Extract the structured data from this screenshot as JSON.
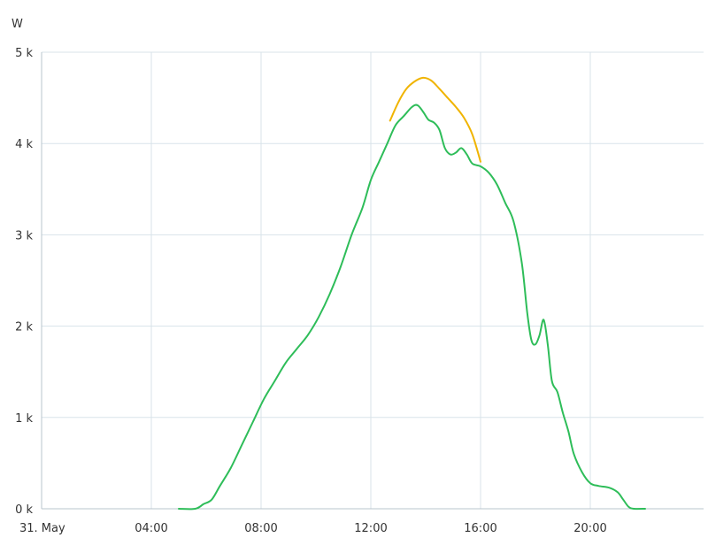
{
  "chart_data": {
    "type": "line",
    "title": "",
    "ylabel": "W",
    "xlabel": "",
    "x_unit": "hours",
    "x_range": [
      0,
      24
    ],
    "ylim": [
      0,
      5000
    ],
    "x_ticks": [
      {
        "value": 0,
        "label": "31. May"
      },
      {
        "value": 4,
        "label": "04:00"
      },
      {
        "value": 8,
        "label": "08:00"
      },
      {
        "value": 12,
        "label": "12:00"
      },
      {
        "value": 16,
        "label": "16:00"
      },
      {
        "value": 20,
        "label": "20:00"
      }
    ],
    "y_ticks": [
      {
        "value": 0,
        "label": "0 k"
      },
      {
        "value": 1000,
        "label": "1 k"
      },
      {
        "value": 2000,
        "label": "2 k"
      },
      {
        "value": 3000,
        "label": "3 k"
      },
      {
        "value": 4000,
        "label": "4 k"
      },
      {
        "value": 5000,
        "label": "5 k"
      }
    ],
    "vertical_grid": true,
    "horizontal_grid": true,
    "legend": "none",
    "series": [
      {
        "color": "#f0b400",
        "points": [
          [
            12.7,
            4250
          ],
          [
            13.0,
            4450
          ],
          [
            13.3,
            4600
          ],
          [
            13.6,
            4680
          ],
          [
            13.9,
            4720
          ],
          [
            14.2,
            4690
          ],
          [
            14.5,
            4600
          ],
          [
            14.8,
            4500
          ],
          [
            15.1,
            4400
          ],
          [
            15.4,
            4280
          ],
          [
            15.7,
            4100
          ],
          [
            16.0,
            3800
          ]
        ]
      },
      {
        "color": "#2ebd59",
        "points": [
          [
            5.0,
            0
          ],
          [
            5.6,
            0
          ],
          [
            5.9,
            50
          ],
          [
            6.2,
            100
          ],
          [
            6.5,
            250
          ],
          [
            6.9,
            450
          ],
          [
            7.3,
            700
          ],
          [
            7.7,
            950
          ],
          [
            8.1,
            1200
          ],
          [
            8.5,
            1400
          ],
          [
            8.9,
            1600
          ],
          [
            9.3,
            1750
          ],
          [
            9.7,
            1900
          ],
          [
            10.1,
            2100
          ],
          [
            10.5,
            2350
          ],
          [
            10.9,
            2650
          ],
          [
            11.3,
            3000
          ],
          [
            11.7,
            3300
          ],
          [
            12.0,
            3600
          ],
          [
            12.3,
            3800
          ],
          [
            12.6,
            4000
          ],
          [
            12.9,
            4200
          ],
          [
            13.2,
            4300
          ],
          [
            13.5,
            4400
          ],
          [
            13.7,
            4420
          ],
          [
            13.9,
            4350
          ],
          [
            14.1,
            4260
          ],
          [
            14.3,
            4230
          ],
          [
            14.5,
            4150
          ],
          [
            14.7,
            3950
          ],
          [
            14.9,
            3880
          ],
          [
            15.1,
            3900
          ],
          [
            15.3,
            3950
          ],
          [
            15.5,
            3880
          ],
          [
            15.7,
            3780
          ],
          [
            16.0,
            3750
          ],
          [
            16.3,
            3680
          ],
          [
            16.6,
            3550
          ],
          [
            16.9,
            3350
          ],
          [
            17.2,
            3150
          ],
          [
            17.5,
            2700
          ],
          [
            17.7,
            2150
          ],
          [
            17.85,
            1850
          ],
          [
            18.0,
            1800
          ],
          [
            18.15,
            1900
          ],
          [
            18.3,
            2070
          ],
          [
            18.45,
            1800
          ],
          [
            18.6,
            1400
          ],
          [
            18.8,
            1280
          ],
          [
            19.0,
            1050
          ],
          [
            19.2,
            850
          ],
          [
            19.4,
            600
          ],
          [
            19.7,
            400
          ],
          [
            20.0,
            280
          ],
          [
            20.3,
            250
          ],
          [
            20.7,
            230
          ],
          [
            21.0,
            180
          ],
          [
            21.2,
            100
          ],
          [
            21.4,
            20
          ],
          [
            21.6,
            0
          ],
          [
            22.0,
            0
          ]
        ]
      }
    ]
  }
}
